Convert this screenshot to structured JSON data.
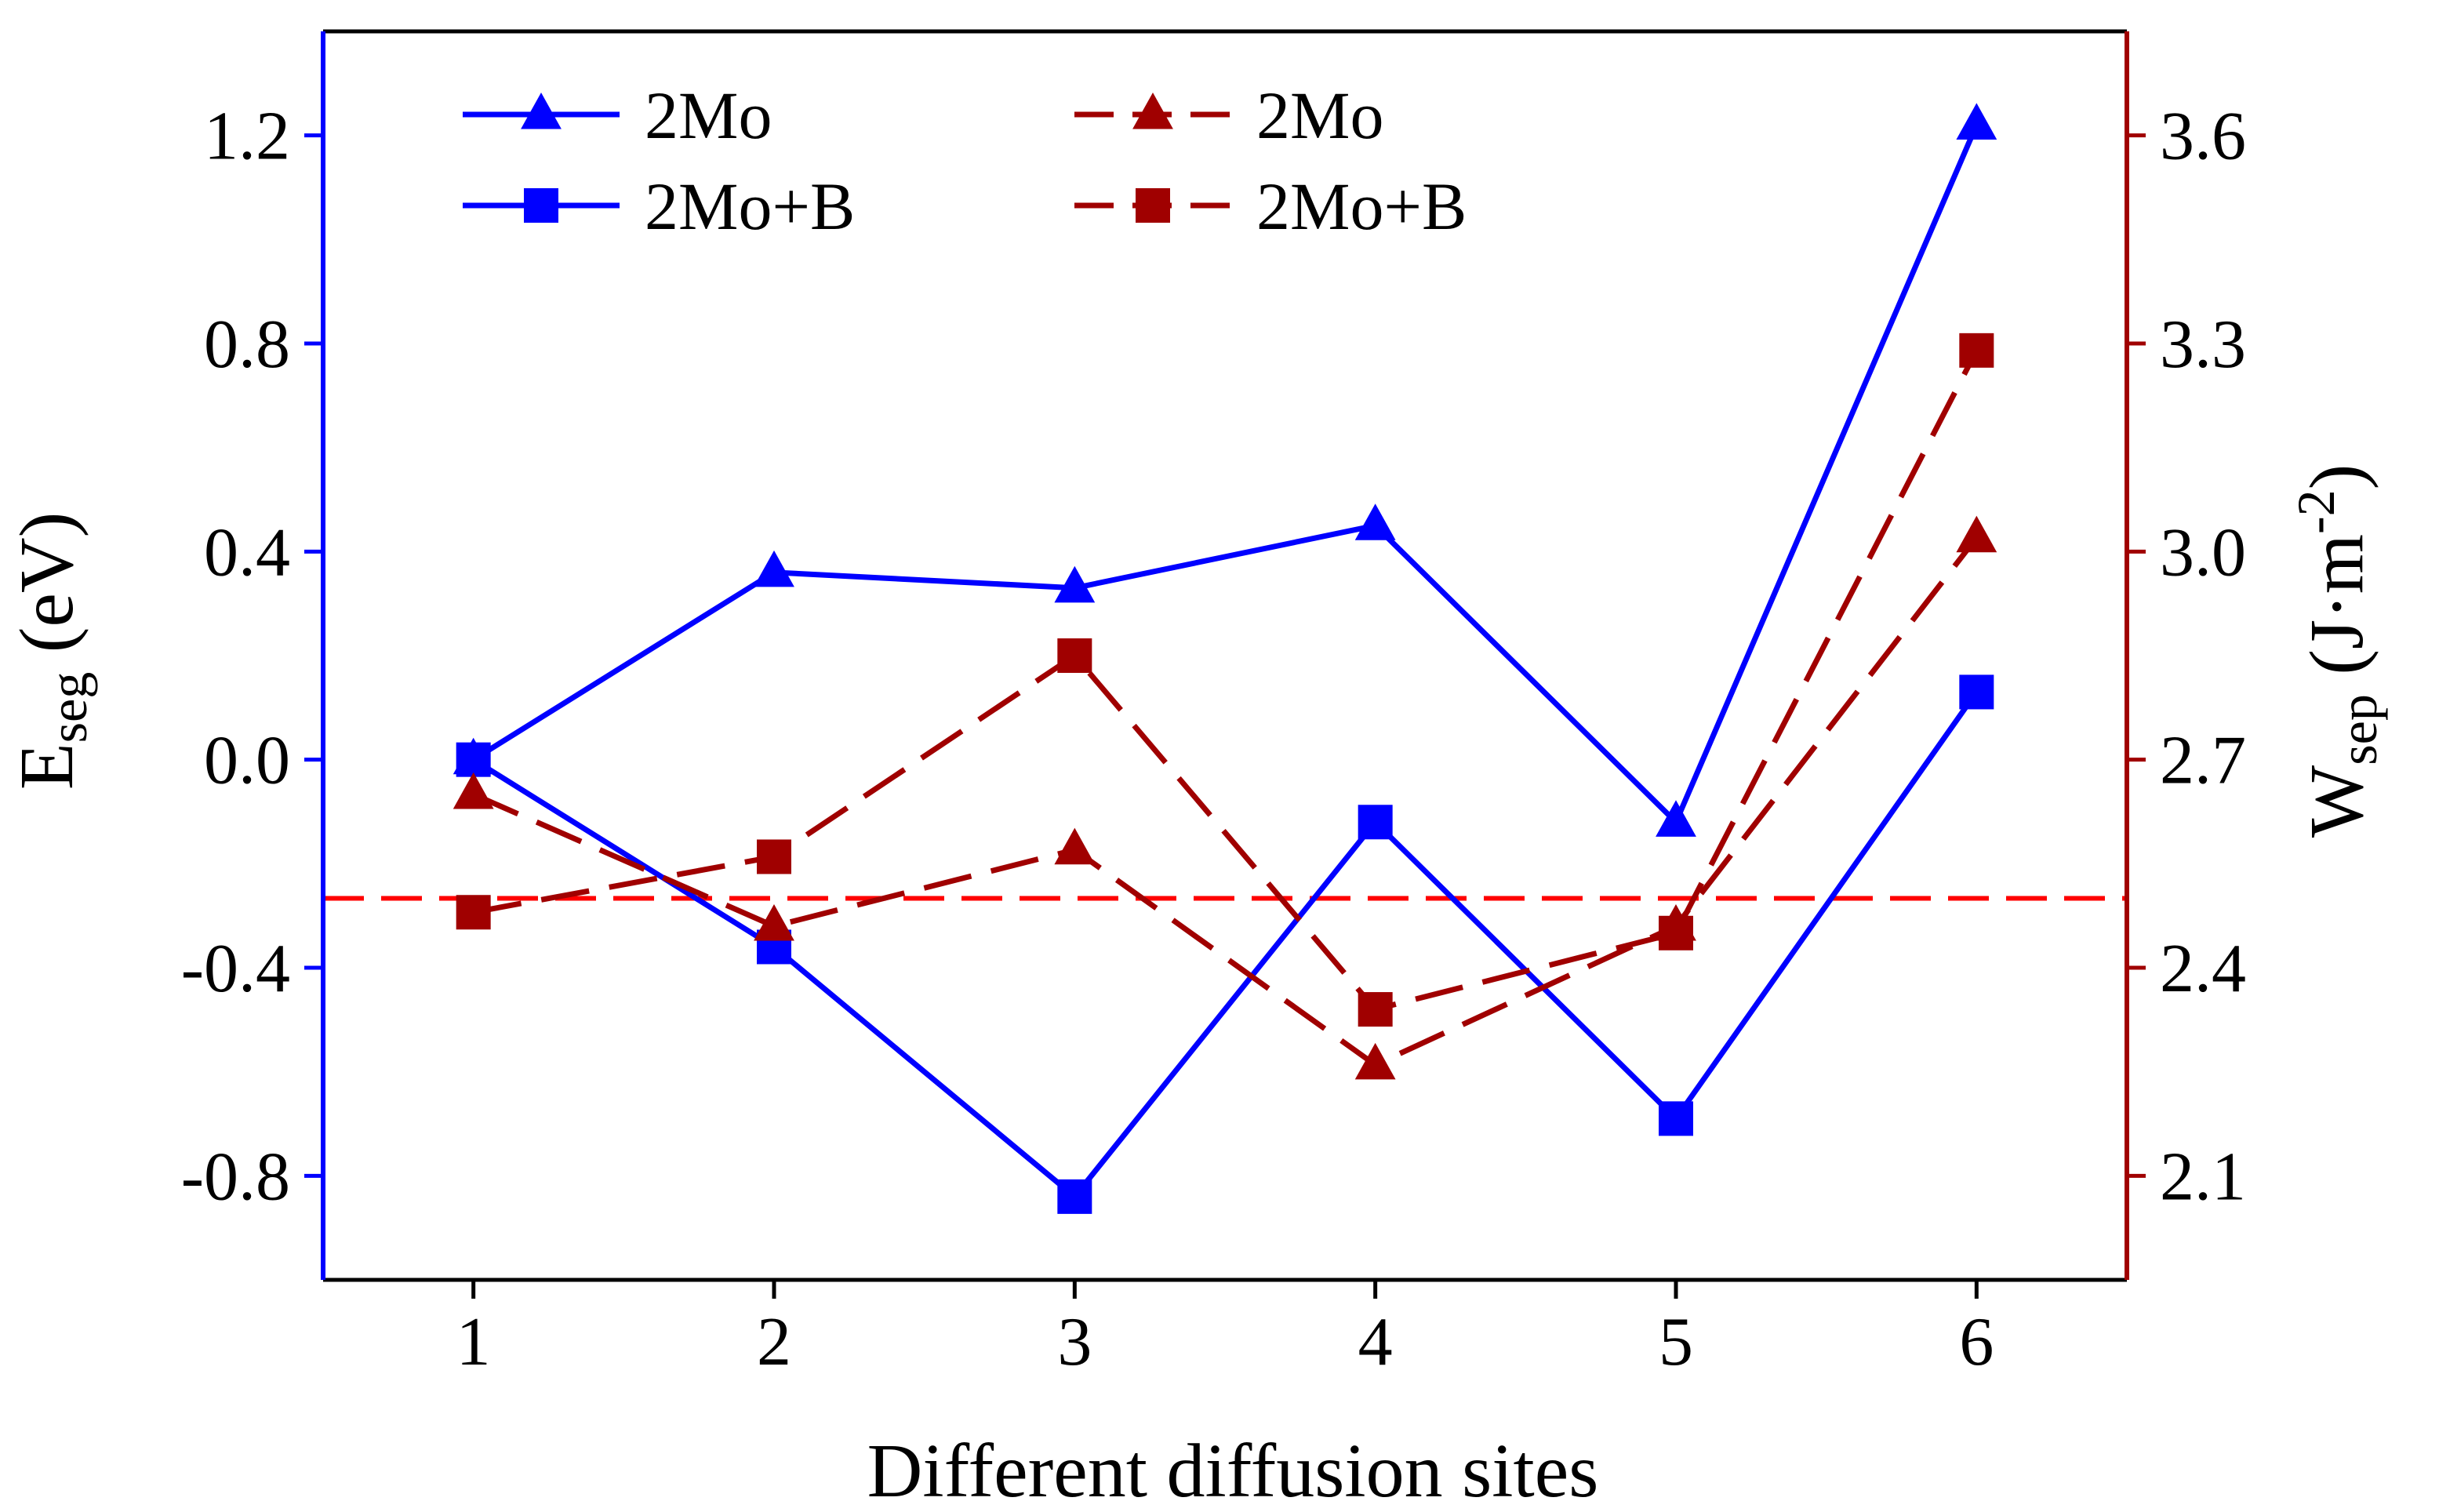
{
  "chart_data": {
    "type": "line",
    "title": "",
    "xlabel": "Different diffusion sites",
    "x": [
      1,
      2,
      3,
      4,
      5,
      6
    ],
    "x_ticks": [
      "1",
      "2",
      "3",
      "4",
      "5",
      "6"
    ],
    "xlim": [
      0.5,
      6.5
    ],
    "y_left": {
      "label_main": "E",
      "label_sub": "seg",
      "label_unit": " (eV)",
      "lim": [
        -1.0,
        1.4
      ],
      "ticks": [
        1.2,
        0.8,
        0.4,
        0.0,
        -0.4,
        -0.8
      ],
      "tick_labels": [
        "1.2",
        "0.8",
        "0.4",
        "0.0",
        "-0.4",
        "-0.8"
      ],
      "color": "#0000ff"
    },
    "y_right": {
      "label_main": "W",
      "label_sub": "sep",
      "label_unit_pre": " (J·m",
      "label_unit_sup": "-2",
      "label_unit_post": ")",
      "lim": [
        1.95,
        3.75
      ],
      "ticks": [
        3.6,
        3.3,
        3.0,
        2.7,
        2.4,
        2.1
      ],
      "tick_labels": [
        "3.6",
        "3.3",
        "3.0",
        "2.7",
        "2.4",
        "2.1"
      ],
      "color": "#a00000"
    },
    "series": [
      {
        "name": "2Mo",
        "axis": "left",
        "marker": "triangle",
        "dash": false,
        "color": "#0000ff",
        "values": [
          0.0,
          0.36,
          0.33,
          0.45,
          -0.12,
          1.22
        ]
      },
      {
        "name": "2Mo+B",
        "axis": "left",
        "marker": "square",
        "dash": false,
        "color": "#0000ff",
        "values": [
          0.0,
          -0.36,
          -0.84,
          -0.12,
          -0.69,
          0.13
        ]
      },
      {
        "name": "2Mo",
        "axis": "right",
        "marker": "triangle",
        "dash": true,
        "color": "#a00000",
        "values": [
          2.65,
          2.46,
          2.57,
          2.26,
          2.46,
          3.02
        ]
      },
      {
        "name": "2Mo+B",
        "axis": "right",
        "marker": "square",
        "dash": true,
        "color": "#a00000",
        "values": [
          2.48,
          2.56,
          2.85,
          2.34,
          2.45,
          3.29
        ]
      }
    ],
    "reference_line": {
      "axis": "right",
      "value": 2.5,
      "color": "#ff0000",
      "dash": true
    },
    "legend_placement": "top-left, two columns",
    "grid": false
  }
}
